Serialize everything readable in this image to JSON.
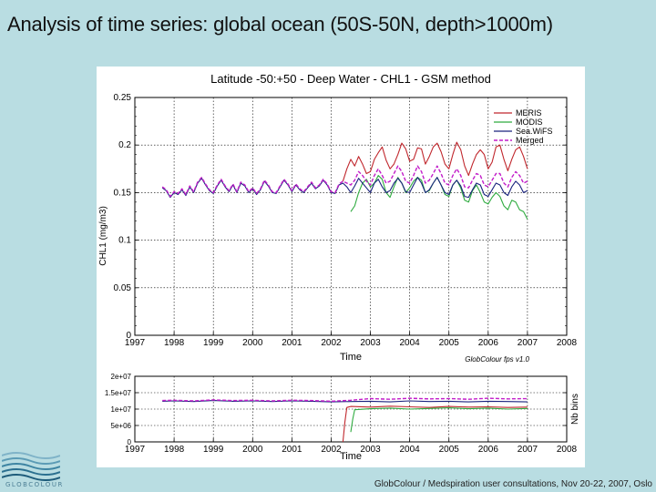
{
  "slide": {
    "title": "Analysis of time series: global ocean (50S-50N, depth>1000m)",
    "footer": "GlobColour / Medspiration user consultations, Nov 20-22, 2007, Oslo",
    "logo_text": "GLOBCOLOUR"
  },
  "colors": {
    "MERIS": "#c0272d",
    "MODIS": "#2eab3f",
    "SeaWiFS": "#1a237e",
    "Merged": "#c21dc9",
    "frame": "#000000"
  },
  "chart_data": [
    {
      "type": "line",
      "title": "Latitude -50:+50 - Deep Water - CHL1 - GSM method",
      "xlabel": "Time",
      "ylabel": "CHL1 (mg/m3)",
      "xlim": [
        1997,
        2008
      ],
      "ylim": [
        0,
        0.25
      ],
      "xticks": [
        "1997",
        "1998",
        "1999",
        "2000",
        "2001",
        "2002",
        "2003",
        "2004",
        "2005",
        "2006",
        "2007",
        "2008"
      ],
      "yticks": [
        {
          "value": 0,
          "label": "0"
        },
        {
          "value": 0.05,
          "label": "0.05"
        },
        {
          "value": 0.1,
          "label": "0.1"
        },
        {
          "value": 0.15,
          "label": "0.15"
        },
        {
          "value": 0.2,
          "label": "0.2"
        },
        {
          "value": 0.25,
          "label": "0.25"
        }
      ],
      "grid": true,
      "annotation": "GlobColour fps v1.0",
      "legend": {
        "position": "top-right",
        "entries": [
          {
            "name": "MERIS",
            "style": "solid"
          },
          {
            "name": "MODIS",
            "style": "solid"
          },
          {
            "name": "SeaWiFS",
            "label": "Sea.WiFS",
            "style": "solid"
          },
          {
            "name": "Merged",
            "style": "dashed"
          }
        ]
      },
      "series": [
        {
          "name": "MERIS",
          "x": [
            2002.3,
            2002.4,
            2002.5,
            2002.6,
            2002.7,
            2002.8,
            2002.9,
            2003.0,
            2003.1,
            2003.2,
            2003.3,
            2003.4,
            2003.5,
            2003.6,
            2003.7,
            2003.8,
            2003.9,
            2004.0,
            2004.1,
            2004.2,
            2004.3,
            2004.4,
            2004.5,
            2004.6,
            2004.7,
            2004.8,
            2004.9,
            2005.0,
            2005.1,
            2005.2,
            2005.3,
            2005.4,
            2005.5,
            2005.6,
            2005.7,
            2005.8,
            2005.9,
            2006.0,
            2006.1,
            2006.2,
            2006.3,
            2006.4,
            2006.5,
            2006.6,
            2006.7,
            2006.8,
            2006.9,
            2007.0
          ],
          "values": [
            0.162,
            0.175,
            0.185,
            0.178,
            0.188,
            0.18,
            0.17,
            0.172,
            0.185,
            0.192,
            0.198,
            0.184,
            0.175,
            0.18,
            0.19,
            0.202,
            0.196,
            0.183,
            0.185,
            0.197,
            0.196,
            0.18,
            0.188,
            0.198,
            0.202,
            0.193,
            0.18,
            0.175,
            0.19,
            0.203,
            0.195,
            0.178,
            0.168,
            0.18,
            0.19,
            0.195,
            0.19,
            0.175,
            0.182,
            0.198,
            0.2,
            0.185,
            0.173,
            0.185,
            0.195,
            0.198,
            0.188,
            0.175
          ]
        },
        {
          "name": "MODIS",
          "x": [
            2002.5,
            2002.6,
            2002.7,
            2002.8,
            2002.9,
            2003.0,
            2003.1,
            2003.2,
            2003.3,
            2003.4,
            2003.5,
            2003.6,
            2003.7,
            2003.8,
            2003.9,
            2004.0,
            2004.1,
            2004.2,
            2004.3,
            2004.4,
            2004.5,
            2004.6,
            2004.7,
            2004.8,
            2004.9,
            2005.0,
            2005.1,
            2005.2,
            2005.3,
            2005.4,
            2005.5,
            2005.6,
            2005.7,
            2005.8,
            2005.9,
            2006.0,
            2006.1,
            2006.2,
            2006.3,
            2006.4,
            2006.5,
            2006.6,
            2006.7,
            2006.8,
            2006.9,
            2007.0
          ],
          "values": [
            0.13,
            0.136,
            0.15,
            0.16,
            0.164,
            0.156,
            0.16,
            0.168,
            0.164,
            0.15,
            0.145,
            0.156,
            0.166,
            0.16,
            0.15,
            0.155,
            0.162,
            0.166,
            0.163,
            0.15,
            0.152,
            0.16,
            0.166,
            0.158,
            0.148,
            0.146,
            0.158,
            0.163,
            0.155,
            0.142,
            0.14,
            0.152,
            0.158,
            0.15,
            0.14,
            0.138,
            0.145,
            0.15,
            0.146,
            0.136,
            0.132,
            0.142,
            0.14,
            0.132,
            0.13,
            0.122
          ]
        },
        {
          "name": "SeaWiFS",
          "x": [
            1997.7,
            1997.8,
            1997.9,
            1998.0,
            1998.1,
            1998.2,
            1998.3,
            1998.4,
            1998.5,
            1998.6,
            1998.7,
            1998.8,
            1998.9,
            1999.0,
            1999.1,
            1999.2,
            1999.3,
            1999.4,
            1999.5,
            1999.6,
            1999.7,
            1999.8,
            1999.9,
            2000.0,
            2000.1,
            2000.2,
            2000.3,
            2000.4,
            2000.5,
            2000.6,
            2000.7,
            2000.8,
            2000.9,
            2001.0,
            2001.1,
            2001.2,
            2001.3,
            2001.4,
            2001.5,
            2001.6,
            2001.7,
            2001.8,
            2001.9,
            2002.0,
            2002.1,
            2002.2,
            2002.3,
            2002.4,
            2002.5,
            2002.6,
            2002.7,
            2002.8,
            2002.9,
            2003.0,
            2003.1,
            2003.2,
            2003.3,
            2003.4,
            2003.5,
            2003.6,
            2003.7,
            2003.8,
            2003.9,
            2004.0,
            2004.1,
            2004.2,
            2004.3,
            2004.4,
            2004.5,
            2004.6,
            2004.7,
            2004.8,
            2004.9,
            2005.0,
            2005.1,
            2005.2,
            2005.3,
            2005.4,
            2005.5,
            2005.6,
            2005.7,
            2005.8,
            2005.9,
            2006.0,
            2006.1,
            2006.2,
            2006.3,
            2006.4,
            2006.5,
            2006.6,
            2006.7,
            2006.8,
            2006.9,
            2007.0
          ],
          "values": [
            0.155,
            0.152,
            0.145,
            0.15,
            0.148,
            0.153,
            0.147,
            0.156,
            0.15,
            0.16,
            0.165,
            0.158,
            0.152,
            0.149,
            0.157,
            0.163,
            0.156,
            0.151,
            0.158,
            0.15,
            0.16,
            0.157,
            0.15,
            0.154,
            0.148,
            0.153,
            0.162,
            0.157,
            0.15,
            0.149,
            0.156,
            0.163,
            0.158,
            0.151,
            0.158,
            0.153,
            0.15,
            0.155,
            0.16,
            0.154,
            0.157,
            0.163,
            0.158,
            0.15,
            0.149,
            0.158,
            0.16,
            0.156,
            0.15,
            0.157,
            0.165,
            0.16,
            0.155,
            0.15,
            0.16,
            0.164,
            0.156,
            0.15,
            0.152,
            0.16,
            0.165,
            0.16,
            0.151,
            0.15,
            0.158,
            0.166,
            0.16,
            0.15,
            0.153,
            0.16,
            0.166,
            0.158,
            0.15,
            0.148,
            0.158,
            0.163,
            0.157,
            0.146,
            0.145,
            0.153,
            0.16,
            0.158,
            0.148,
            0.146,
            0.153,
            0.16,
            0.158,
            0.15,
            0.147,
            0.156,
            0.162,
            0.158,
            0.15,
            0.152
          ]
        },
        {
          "name": "Merged",
          "x": [
            1997.7,
            1997.8,
            1997.9,
            1998.0,
            1998.1,
            1998.2,
            1998.3,
            1998.4,
            1998.5,
            1998.6,
            1998.7,
            1998.8,
            1998.9,
            1999.0,
            1999.1,
            1999.2,
            1999.3,
            1999.4,
            1999.5,
            1999.6,
            1999.7,
            1999.8,
            1999.9,
            2000.0,
            2000.1,
            2000.2,
            2000.3,
            2000.4,
            2000.5,
            2000.6,
            2000.7,
            2000.8,
            2000.9,
            2001.0,
            2001.1,
            2001.2,
            2001.3,
            2001.4,
            2001.5,
            2001.6,
            2001.7,
            2001.8,
            2001.9,
            2002.0,
            2002.1,
            2002.2,
            2002.3,
            2002.4,
            2002.5,
            2002.6,
            2002.7,
            2002.8,
            2002.9,
            2003.0,
            2003.1,
            2003.2,
            2003.3,
            2003.4,
            2003.5,
            2003.6,
            2003.7,
            2003.8,
            2003.9,
            2004.0,
            2004.1,
            2004.2,
            2004.3,
            2004.4,
            2004.5,
            2004.6,
            2004.7,
            2004.8,
            2004.9,
            2005.0,
            2005.1,
            2005.2,
            2005.3,
            2005.4,
            2005.5,
            2005.6,
            2005.7,
            2005.8,
            2005.9,
            2006.0,
            2006.1,
            2006.2,
            2006.3,
            2006.4,
            2006.5,
            2006.6,
            2006.7,
            2006.8,
            2006.9,
            2007.0
          ],
          "values": [
            0.156,
            0.153,
            0.146,
            0.151,
            0.149,
            0.154,
            0.148,
            0.157,
            0.151,
            0.161,
            0.166,
            0.159,
            0.153,
            0.15,
            0.158,
            0.164,
            0.157,
            0.152,
            0.159,
            0.151,
            0.161,
            0.158,
            0.151,
            0.155,
            0.149,
            0.154,
            0.163,
            0.158,
            0.151,
            0.15,
            0.157,
            0.164,
            0.159,
            0.152,
            0.159,
            0.154,
            0.151,
            0.156,
            0.161,
            0.155,
            0.158,
            0.164,
            0.159,
            0.151,
            0.15,
            0.159,
            0.162,
            0.16,
            0.158,
            0.163,
            0.172,
            0.168,
            0.162,
            0.158,
            0.168,
            0.175,
            0.168,
            0.16,
            0.162,
            0.17,
            0.178,
            0.172,
            0.162,
            0.16,
            0.168,
            0.178,
            0.172,
            0.16,
            0.163,
            0.17,
            0.178,
            0.17,
            0.16,
            0.158,
            0.168,
            0.175,
            0.168,
            0.156,
            0.155,
            0.163,
            0.17,
            0.168,
            0.158,
            0.156,
            0.163,
            0.17,
            0.17,
            0.16,
            0.156,
            0.166,
            0.172,
            0.168,
            0.16,
            0.162
          ]
        }
      ]
    },
    {
      "type": "line",
      "title": "",
      "xlabel": "Time",
      "ylabel": "",
      "right_ylabel": "Nb bins",
      "xlim": [
        1997,
        2008
      ],
      "ylim": [
        0,
        20000000
      ],
      "xticks": [
        "1997",
        "1998",
        "1999",
        "2000",
        "2001",
        "2002",
        "2003",
        "2004",
        "2005",
        "2006",
        "2007",
        "2008"
      ],
      "yticks": [
        {
          "value": 0,
          "label": "0"
        },
        {
          "value": 5000000,
          "label": "5e+06"
        },
        {
          "value": 10000000,
          "label": "1e+07"
        },
        {
          "value": 15000000,
          "label": "1.5e+07"
        },
        {
          "value": 20000000,
          "label": "2e+07"
        }
      ],
      "grid": true,
      "series": [
        {
          "name": "MERIS",
          "x": [
            2002.3,
            2002.35,
            2002.4,
            2002.5,
            2003.0,
            2003.5,
            2004.0,
            2004.5,
            2005.0,
            2005.5,
            2006.0,
            2006.5,
            2007.0
          ],
          "values": [
            0,
            6000000,
            10500000,
            10800000,
            10600000,
            10900000,
            10700000,
            10500000,
            10800000,
            10600000,
            10700000,
            10500000,
            10600000
          ]
        },
        {
          "name": "MODIS",
          "x": [
            2002.5,
            2002.55,
            2002.6,
            2003.0,
            2003.5,
            2004.0,
            2004.5,
            2005.0,
            2005.5,
            2006.0,
            2006.5,
            2007.0
          ],
          "values": [
            3000000,
            7000000,
            9800000,
            10100000,
            10300000,
            10000000,
            10200000,
            10400000,
            10100000,
            10300000,
            10000000,
            10200000
          ]
        },
        {
          "name": "SeaWiFS",
          "x": [
            1997.7,
            1998.0,
            1998.5,
            1999.0,
            1999.5,
            2000.0,
            2000.5,
            2001.0,
            2001.5,
            2002.0,
            2002.5,
            2003.0,
            2003.5,
            2004.0,
            2004.5,
            2005.0,
            2005.5,
            2006.0,
            2006.5,
            2007.0
          ],
          "values": [
            12400000,
            12500000,
            12300000,
            12600000,
            12400000,
            12500000,
            12300000,
            12500000,
            12400000,
            12200000,
            12300000,
            12400000,
            12200000,
            12500000,
            12300000,
            12400000,
            12200000,
            12400000,
            12300000,
            12200000
          ]
        },
        {
          "name": "Merged",
          "x": [
            1997.7,
            1998.0,
            1998.5,
            1999.0,
            1999.5,
            2000.0,
            2000.5,
            2001.0,
            2001.5,
            2002.0,
            2002.5,
            2003.0,
            2003.5,
            2004.0,
            2004.5,
            2005.0,
            2005.5,
            2006.0,
            2006.5,
            2007.0
          ],
          "values": [
            12600000,
            12700000,
            12500000,
            12800000,
            12600000,
            12700000,
            12500000,
            12700000,
            12600000,
            12400000,
            12700000,
            13200000,
            13000000,
            13300000,
            13100000,
            13200000,
            13000000,
            13300000,
            13100000,
            13200000
          ]
        }
      ]
    }
  ]
}
